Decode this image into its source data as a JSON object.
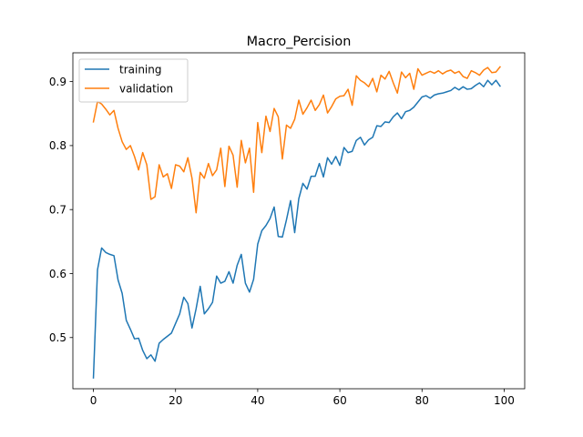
{
  "chart_data": {
    "type": "line",
    "title": "Macro_Percision",
    "xlabel": "",
    "ylabel": "",
    "xlim": [
      -5,
      105
    ],
    "ylim": [
      0.42,
      0.945
    ],
    "xticks": [
      0,
      20,
      40,
      60,
      80,
      100
    ],
    "yticks": [
      0.5,
      0.6,
      0.7,
      0.8,
      0.9
    ],
    "xtick_labels": [
      "0",
      "20",
      "40",
      "60",
      "80",
      "100"
    ],
    "ytick_labels": [
      "0.5",
      "0.6",
      "0.7",
      "0.8",
      "0.9"
    ],
    "grid": false,
    "legend_position": "top-left",
    "series": [
      {
        "name": "training",
        "color": "#1f77b4",
        "values": [
          0.437,
          0.606,
          0.64,
          0.633,
          0.63,
          0.628,
          0.59,
          0.569,
          0.527,
          0.513,
          0.498,
          0.499,
          0.48,
          0.467,
          0.473,
          0.463,
          0.491,
          0.497,
          0.502,
          0.507,
          0.522,
          0.537,
          0.563,
          0.553,
          0.515,
          0.545,
          0.58,
          0.537,
          0.545,
          0.555,
          0.596,
          0.585,
          0.588,
          0.603,
          0.585,
          0.613,
          0.63,
          0.585,
          0.571,
          0.591,
          0.646,
          0.667,
          0.675,
          0.686,
          0.704,
          0.658,
          0.657,
          0.684,
          0.714,
          0.664,
          0.717,
          0.741,
          0.732,
          0.752,
          0.752,
          0.772,
          0.751,
          0.781,
          0.771,
          0.783,
          0.769,
          0.797,
          0.789,
          0.791,
          0.808,
          0.813,
          0.801,
          0.809,
          0.813,
          0.831,
          0.83,
          0.837,
          0.836,
          0.845,
          0.851,
          0.842,
          0.853,
          0.855,
          0.86,
          0.868,
          0.876,
          0.878,
          0.874,
          0.879,
          0.881,
          0.882,
          0.884,
          0.886,
          0.891,
          0.887,
          0.892,
          0.888,
          0.889,
          0.894,
          0.898,
          0.892,
          0.902,
          0.895,
          0.902,
          0.893
        ]
      },
      {
        "name": "validation",
        "color": "#ff7f0e",
        "values": [
          0.837,
          0.869,
          0.865,
          0.857,
          0.848,
          0.855,
          0.827,
          0.806,
          0.794,
          0.8,
          0.783,
          0.762,
          0.789,
          0.77,
          0.716,
          0.72,
          0.77,
          0.751,
          0.756,
          0.733,
          0.77,
          0.768,
          0.759,
          0.781,
          0.749,
          0.695,
          0.758,
          0.749,
          0.772,
          0.753,
          0.762,
          0.796,
          0.736,
          0.799,
          0.785,
          0.735,
          0.808,
          0.773,
          0.796,
          0.727,
          0.836,
          0.789,
          0.846,
          0.822,
          0.858,
          0.845,
          0.779,
          0.832,
          0.827,
          0.841,
          0.871,
          0.849,
          0.859,
          0.871,
          0.855,
          0.864,
          0.879,
          0.851,
          0.861,
          0.873,
          0.877,
          0.878,
          0.888,
          0.863,
          0.909,
          0.902,
          0.898,
          0.892,
          0.905,
          0.884,
          0.91,
          0.904,
          0.916,
          0.898,
          0.882,
          0.915,
          0.906,
          0.913,
          0.888,
          0.92,
          0.91,
          0.913,
          0.916,
          0.913,
          0.917,
          0.912,
          0.916,
          0.918,
          0.913,
          0.916,
          0.908,
          0.905,
          0.917,
          0.914,
          0.91,
          0.918,
          0.922,
          0.914,
          0.915,
          0.923
        ]
      }
    ]
  }
}
